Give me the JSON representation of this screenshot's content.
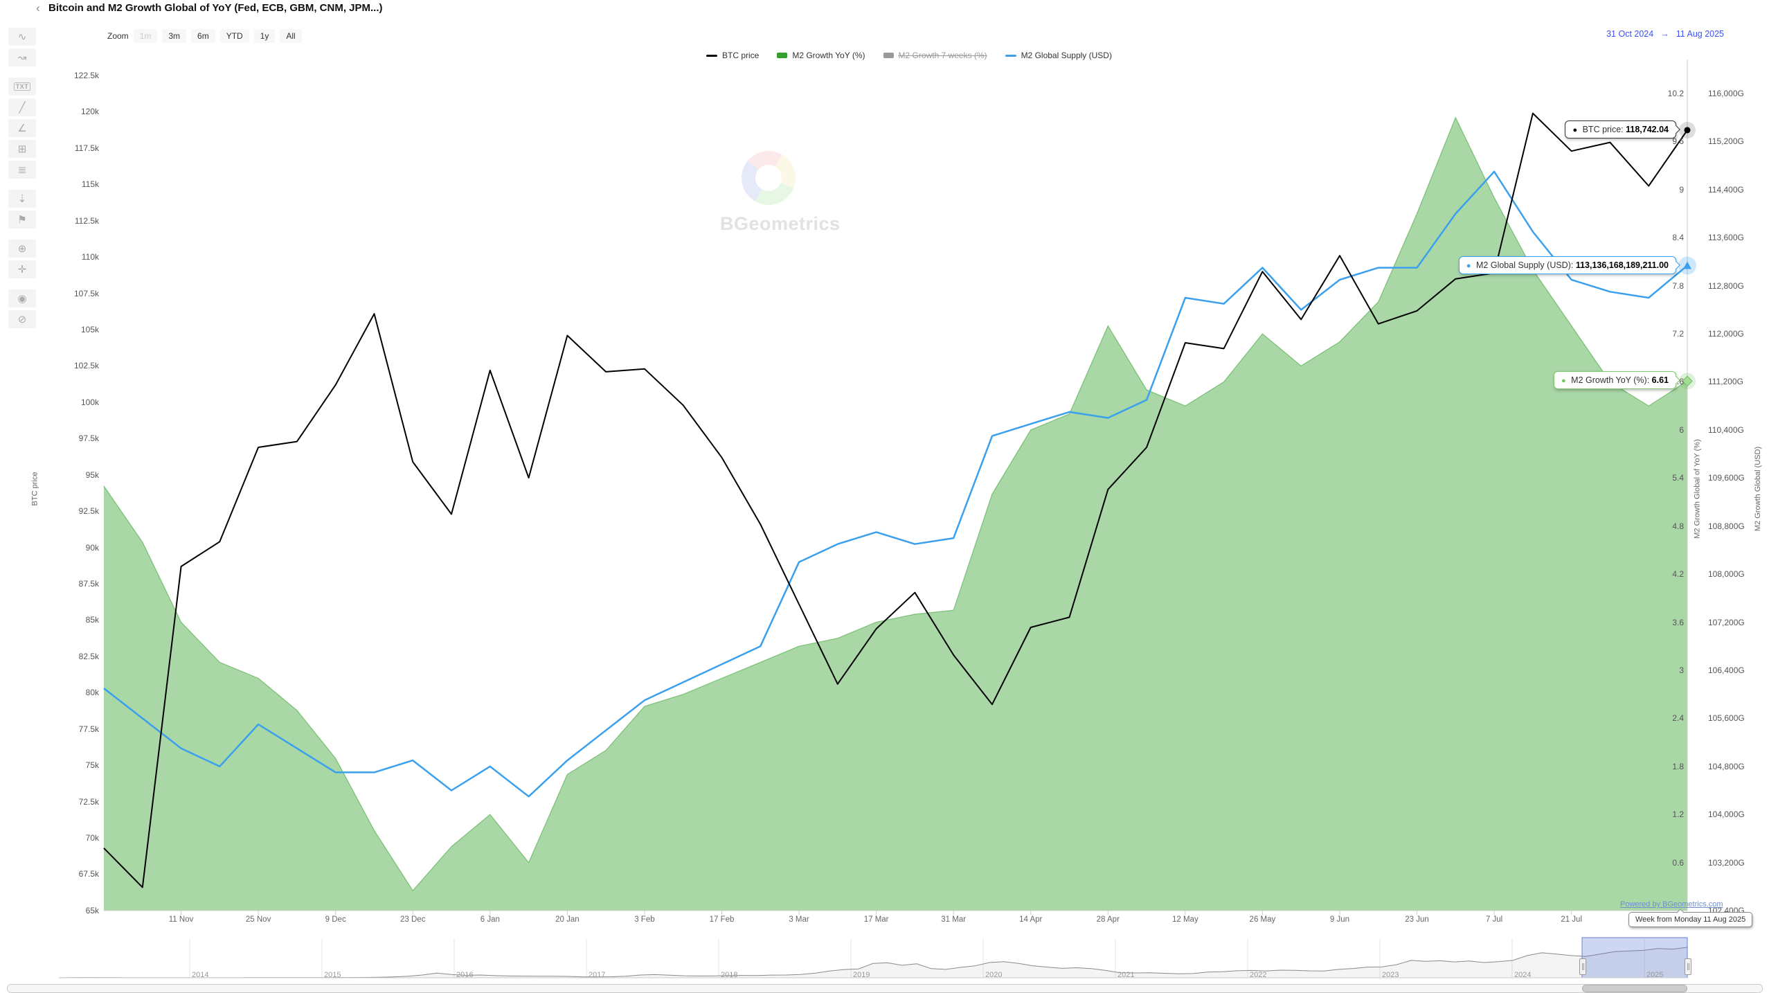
{
  "header": {
    "title": "Bitcoin and M2 Growth Global of YoY (Fed, ECB, GBM, CNM, JPM...)",
    "collapse_chevron": "‹"
  },
  "toolbar": {
    "tools": [
      {
        "name": "trend-curve-icon",
        "glyph": "∿"
      },
      {
        "name": "zigzag-arrow-icon",
        "glyph": "↝"
      },
      {
        "name": "text-annotation-icon",
        "glyph": "TXT"
      },
      {
        "name": "trendline-icon",
        "glyph": "╱"
      },
      {
        "name": "angle-measure-icon",
        "glyph": "∠"
      },
      {
        "name": "measure-region-icon",
        "glyph": "⊞"
      },
      {
        "name": "parallel-lines-icon",
        "glyph": "≣"
      },
      {
        "name": "numeric-arrow-icon",
        "glyph": "⇣"
      },
      {
        "name": "flag-icon",
        "glyph": "⚑"
      },
      {
        "name": "zoom-area-icon",
        "glyph": "⊕"
      },
      {
        "name": "expand-icon",
        "glyph": "✛"
      },
      {
        "name": "show-values-icon",
        "glyph": "◉"
      },
      {
        "name": "hide-drawings-icon",
        "glyph": "⊘"
      }
    ],
    "gap_after": [
      1,
      6,
      8,
      10
    ]
  },
  "zoom_bar": {
    "label": "Zoom",
    "buttons": [
      {
        "label": "1m",
        "enabled": false
      },
      {
        "label": "3m",
        "enabled": true
      },
      {
        "label": "6m",
        "enabled": true
      },
      {
        "label": "YTD",
        "enabled": true
      },
      {
        "label": "1y",
        "enabled": true
      },
      {
        "label": "All",
        "enabled": true
      }
    ]
  },
  "legend": {
    "items": [
      {
        "label": "BTC price",
        "marker": "line",
        "color": "#000000",
        "disabled": false
      },
      {
        "label": "M2 Growth YoY (%)",
        "marker": "rect",
        "color": "#33a02c",
        "disabled": false
      },
      {
        "label": "M2 Growth 7 weeks (%)",
        "marker": "rect",
        "color": "#999999",
        "disabled": true
      },
      {
        "label": "M2 Global Supply (USD)",
        "marker": "line",
        "color": "#3aa0ee",
        "disabled": false
      }
    ]
  },
  "date_range": {
    "from": "31 Oct 2024",
    "arrow": "→",
    "to": "11 Aug 2025",
    "color": "#3d52f5"
  },
  "axes": {
    "left": {
      "title": "BTC price",
      "ticks": [
        "122.5k",
        "120k",
        "117.5k",
        "115k",
        "112.5k",
        "110k",
        "107.5k",
        "105k",
        "102.5k",
        "100k",
        "97.5k",
        "95k",
        "92.5k",
        "90k",
        "87.5k",
        "85k",
        "82.5k",
        "80k",
        "77.5k",
        "75k",
        "72.5k",
        "70k",
        "67.5k",
        "65k"
      ]
    },
    "right_growth": {
      "title": "M2 Growth Global of YoY (%)",
      "ticks": [
        "10.2",
        "9.6",
        "9",
        "8.4",
        "7.8",
        "7.2",
        "6.6",
        "6",
        "5.4",
        "4.8",
        "4.2",
        "3.6",
        "3",
        "2.4",
        "1.8",
        "1.2",
        "0.6"
      ]
    },
    "right_supply": {
      "title": "M2 Growth Global (USD)",
      "ticks": [
        "116,000G",
        "115,200G",
        "114,400G",
        "113,600G",
        "112,800G",
        "112,000G",
        "111,200G",
        "110,400G",
        "109,600G",
        "108,800G",
        "108,000G",
        "107,200G",
        "106,400G",
        "105,600G",
        "104,800G",
        "104,000G",
        "103,200G",
        "102,400G"
      ]
    },
    "x": {
      "labels": [
        "11 Nov",
        "25 Nov",
        "9 Dec",
        "23 Dec",
        "6 Jan",
        "20 Jan",
        "3 Feb",
        "17 Feb",
        "3 Mar",
        "17 Mar",
        "31 Mar",
        "14 Apr",
        "28 Apr",
        "12 May",
        "26 May",
        "9 Jun",
        "23 Jun",
        "7 Jul",
        "21 Jul"
      ]
    }
  },
  "chart_data": {
    "type": "line",
    "x": [
      "31 Oct",
      "4 Nov",
      "11 Nov",
      "18 Nov",
      "25 Nov",
      "2 Dec",
      "9 Dec",
      "16 Dec",
      "23 Dec",
      "30 Dec",
      "6 Jan",
      "13 Jan",
      "20 Jan",
      "27 Jan",
      "3 Feb",
      "10 Feb",
      "17 Feb",
      "24 Feb",
      "3 Mar",
      "10 Mar",
      "17 Mar",
      "24 Mar",
      "31 Mar",
      "7 Apr",
      "14 Apr",
      "21 Apr",
      "28 Apr",
      "5 May",
      "12 May",
      "19 May",
      "26 May",
      "2 Jun",
      "9 Jun",
      "16 Jun",
      "23 Jun",
      "30 Jun",
      "7 Jul",
      "14 Jul",
      "21 Jul",
      "28 Jul",
      "4 Aug",
      "11 Aug"
    ],
    "series": [
      {
        "name": "BTC price",
        "type": "line",
        "axis": "left",
        "color": "#000000",
        "values": [
          69300,
          66600,
          88700,
          90400,
          96900,
          97300,
          101200,
          106100,
          95900,
          92300,
          102200,
          94800,
          104600,
          102100,
          102300,
          99800,
          96200,
          91600,
          86100,
          80600,
          84400,
          86900,
          82600,
          79200,
          84500,
          85200,
          94000,
          96900,
          104100,
          103700,
          109000,
          105700,
          110100,
          105400,
          106300,
          108500,
          108900,
          119900,
          117300,
          117900,
          114900,
          118742.04
        ]
      },
      {
        "name": "M2 Growth YoY (%)",
        "type": "area",
        "axis": "right_growth",
        "color": "#33a02c",
        "fill": "rgba(51,160,44,0.42)",
        "values": [
          5.3,
          4.6,
          3.6,
          3.1,
          2.9,
          2.5,
          1.9,
          1.0,
          0.25,
          0.8,
          1.2,
          0.6,
          1.7,
          2.0,
          2.55,
          2.7,
          2.9,
          3.1,
          3.3,
          3.4,
          3.6,
          3.7,
          3.75,
          5.2,
          6.0,
          6.2,
          7.3,
          6.5,
          6.3,
          6.6,
          7.2,
          6.8,
          7.1,
          7.6,
          8.7,
          9.9,
          8.9,
          8.0,
          7.3,
          6.6,
          6.3,
          6.61
        ]
      },
      {
        "name": "M2 Growth 7 weeks (%)",
        "type": "line",
        "axis": "right_growth",
        "color": "#999999",
        "hidden": true,
        "values": []
      },
      {
        "name": "M2 Global Supply (USD)",
        "type": "line",
        "axis": "right_supply",
        "color": "#3aa0ee",
        "values": [
          106100,
          105600,
          105100,
          104800,
          105500,
          105100,
          104700,
          104700,
          104900,
          104400,
          104800,
          104300,
          104900,
          105400,
          105900,
          106200,
          106500,
          106800,
          108200,
          108500,
          108700,
          108500,
          108600,
          110300,
          110500,
          110700,
          110600,
          110900,
          112600,
          112500,
          113100,
          112400,
          112900,
          113100,
          113100,
          114000,
          114700,
          113700,
          112900,
          112700,
          112600,
          113136.17
        ]
      }
    ],
    "axis_ranges": {
      "left_btc_usd": [
        65000,
        122500
      ],
      "right_growth_pct": [
        0,
        10.2
      ],
      "right_supply_gusd": [
        102400,
        116000
      ]
    },
    "grid": "off",
    "legend_position": "top-center",
    "title": "Bitcoin and M2 Growth Global of YoY (Fed, ECB, GBM, CNM, JPM...)"
  },
  "tooltips": {
    "btc": {
      "bullet": "●",
      "color": "#000000",
      "label": "BTC price:",
      "value": "118,742.04"
    },
    "supply": {
      "bullet": "●",
      "color": "#3aa0ee",
      "label": "M2 Global Supply (USD):",
      "value": "113,136,168,189,211.00"
    },
    "growth": {
      "bullet": "●",
      "color": "#70c95e",
      "label": "M2 Growth YoY (%):",
      "value": "6.61"
    },
    "week": {
      "text": "Week from Monday 11 Aug 2025"
    }
  },
  "watermark": {
    "text": "BGeometrics"
  },
  "credits": {
    "text": "Powered by BGeometrics.com"
  },
  "navigator": {
    "years": [
      "2014",
      "2015",
      "2016",
      "2017",
      "2018",
      "2019",
      "2020",
      "2021",
      "2022",
      "2023",
      "2024",
      "2025"
    ],
    "spark": [
      0.002,
      0.004,
      0.008,
      0.006,
      0.004,
      0.003,
      0.003,
      0.002,
      0.002,
      0.002,
      0.003,
      0.003,
      0.003,
      0.004,
      0.004,
      0.005,
      0.005,
      0.006,
      0.007,
      0.008,
      0.009,
      0.012,
      0.018,
      0.03,
      0.05,
      0.09,
      0.155,
      0.11,
      0.08,
      0.09,
      0.07,
      0.06,
      0.055,
      0.05,
      0.052,
      0.045,
      0.03,
      0.029,
      0.033,
      0.05,
      0.09,
      0.105,
      0.085,
      0.067,
      0.06,
      0.059,
      0.072,
      0.077,
      0.073,
      0.088,
      0.092,
      0.107,
      0.15,
      0.22,
      0.27,
      0.29,
      0.47,
      0.49,
      0.41,
      0.46,
      0.3,
      0.275,
      0.34,
      0.39,
      0.5,
      0.53,
      0.47,
      0.39,
      0.35,
      0.31,
      0.33,
      0.3,
      0.24,
      0.165,
      0.158,
      0.163,
      0.148,
      0.13,
      0.138,
      0.188,
      0.2,
      0.23,
      0.242,
      0.225,
      0.25,
      0.243,
      0.228,
      0.222,
      0.275,
      0.305,
      0.35,
      0.36,
      0.43,
      0.57,
      0.54,
      0.56,
      0.52,
      0.55,
      0.5,
      0.53,
      0.57,
      0.73,
      0.82,
      0.78,
      0.73,
      0.7,
      0.78,
      0.86,
      0.88,
      0.9,
      0.96,
      0.94,
      1.0
    ]
  }
}
